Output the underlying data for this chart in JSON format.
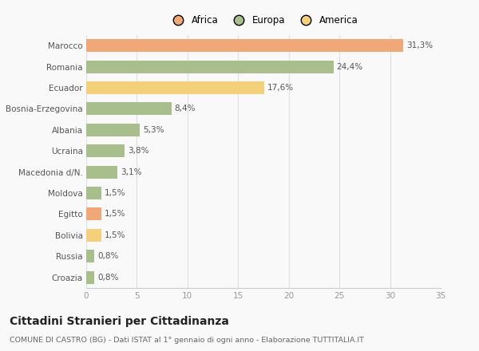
{
  "categories": [
    "Marocco",
    "Romania",
    "Ecuador",
    "Bosnia-Erzegovina",
    "Albania",
    "Ucraina",
    "Macedonia d/N.",
    "Moldova",
    "Egitto",
    "Bolivia",
    "Russia",
    "Croazia"
  ],
  "values": [
    31.3,
    24.4,
    17.6,
    8.4,
    5.3,
    3.8,
    3.1,
    1.5,
    1.5,
    1.5,
    0.8,
    0.8
  ],
  "colors": [
    "#F0A878",
    "#A8BE8C",
    "#F5D07A",
    "#A8BE8C",
    "#A8BE8C",
    "#A8BE8C",
    "#A8BE8C",
    "#A8BE8C",
    "#F0A878",
    "#F5D07A",
    "#A8BE8C",
    "#A8BE8C"
  ],
  "labels": [
    "31,3%",
    "24,4%",
    "17,6%",
    "8,4%",
    "5,3%",
    "3,8%",
    "3,1%",
    "1,5%",
    "1,5%",
    "1,5%",
    "0,8%",
    "0,8%"
  ],
  "legend": [
    {
      "label": "Africa",
      "color": "#F0A878"
    },
    {
      "label": "Europa",
      "color": "#A8BE8C"
    },
    {
      "label": "America",
      "color": "#F5D07A"
    }
  ],
  "xlim": [
    0,
    35
  ],
  "xticks": [
    0,
    5,
    10,
    15,
    20,
    25,
    30,
    35
  ],
  "title": "Cittadini Stranieri per Cittadinanza",
  "subtitle": "COMUNE DI CASTRO (BG) - Dati ISTAT al 1° gennaio di ogni anno - Elaborazione TUTTITALIA.IT",
  "background_color": "#f9f9f9",
  "grid_color": "#e0e0e0",
  "bar_height": 0.6,
  "label_fontsize": 7.5,
  "tick_fontsize": 7.5,
  "title_fontsize": 10,
  "subtitle_fontsize": 6.8
}
